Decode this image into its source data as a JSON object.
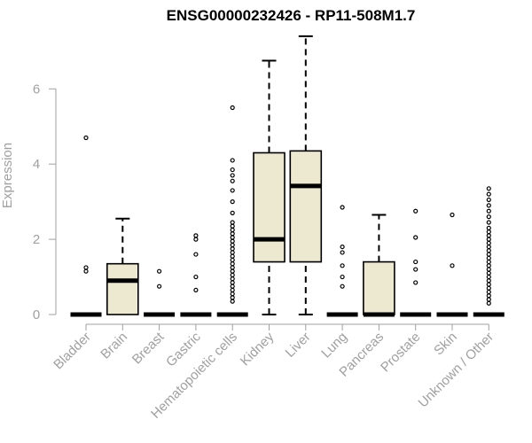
{
  "chart_data": {
    "type": "boxplot",
    "title": "ENSG00000232426 - RP11-508M1.7",
    "xlabel": "",
    "ylabel": "Expression",
    "ylim": [
      0,
      7.4
    ],
    "yticks": [
      0,
      2,
      4,
      6
    ],
    "grid": false,
    "colors": {
      "box_fill": "#ede8d0",
      "axis": "#a0a0a0",
      "ink": "#000000"
    },
    "categories": [
      "Bladder",
      "Brain",
      "Breast",
      "Gastric",
      "Hematopoietic cells",
      "Kidney",
      "Liver",
      "Lung",
      "Pancreas",
      "Prostate",
      "Skin",
      "Unknown / Other"
    ],
    "boxes": [
      {
        "category": "Bladder",
        "whisker_low": 0,
        "q1": 0,
        "median": 0,
        "q3": 0,
        "whisker_high": 0,
        "outliers": [
          1.15,
          1.25,
          4.7
        ]
      },
      {
        "category": "Brain",
        "whisker_low": 0,
        "q1": 0,
        "median": 0.9,
        "q3": 1.35,
        "whisker_high": 2.55,
        "outliers": []
      },
      {
        "category": "Breast",
        "whisker_low": 0,
        "q1": 0,
        "median": 0,
        "q3": 0,
        "whisker_high": 0,
        "outliers": [
          0.75,
          1.15
        ]
      },
      {
        "category": "Gastric",
        "whisker_low": 0,
        "q1": 0,
        "median": 0,
        "q3": 0,
        "whisker_high": 0,
        "outliers": [
          0.65,
          1.0,
          1.6,
          2.0,
          2.1
        ]
      },
      {
        "category": "Hematopoietic cells",
        "whisker_low": 0,
        "q1": 0,
        "median": 0,
        "q3": 0,
        "whisker_high": 0,
        "outliers": [
          0.35,
          0.45,
          0.55,
          0.65,
          0.75,
          0.85,
          0.95,
          1.05,
          1.15,
          1.25,
          1.35,
          1.45,
          1.55,
          1.65,
          1.75,
          1.85,
          1.95,
          2.05,
          2.15,
          2.25,
          2.35,
          2.45,
          2.7,
          3.0,
          3.3,
          3.55,
          3.7,
          3.85,
          4.1,
          5.5
        ]
      },
      {
        "category": "Kidney",
        "whisker_low": 0,
        "q1": 1.4,
        "median": 2.0,
        "q3": 4.3,
        "whisker_high": 6.75,
        "outliers": []
      },
      {
        "category": "Liver",
        "whisker_low": 0,
        "q1": 1.4,
        "median": 3.42,
        "q3": 4.35,
        "whisker_high": 7.4,
        "outliers": []
      },
      {
        "category": "Lung",
        "whisker_low": 0,
        "q1": 0,
        "median": 0,
        "q3": 0,
        "whisker_high": 0,
        "outliers": [
          0.75,
          1.0,
          1.3,
          1.65,
          1.8,
          2.85
        ]
      },
      {
        "category": "Pancreas",
        "whisker_low": 0,
        "q1": 0,
        "median": 0,
        "q3": 1.4,
        "whisker_high": 2.65,
        "outliers": []
      },
      {
        "category": "Prostate",
        "whisker_low": 0,
        "q1": 0,
        "median": 0,
        "q3": 0,
        "whisker_high": 0,
        "outliers": [
          0.85,
          1.2,
          1.4,
          2.05,
          2.75
        ]
      },
      {
        "category": "Skin",
        "whisker_low": 0,
        "q1": 0,
        "median": 0,
        "q3": 0,
        "whisker_high": 0,
        "outliers": [
          1.3,
          2.65
        ]
      },
      {
        "category": "Unknown / Other",
        "whisker_low": 0,
        "q1": 0,
        "median": 0,
        "q3": 0,
        "whisker_high": 0,
        "outliers": [
          0.3,
          0.4,
          0.5,
          0.6,
          0.7,
          0.8,
          0.9,
          1.0,
          1.1,
          1.2,
          1.3,
          1.4,
          1.5,
          1.6,
          1.7,
          1.8,
          1.9,
          2.0,
          2.1,
          2.2,
          2.3,
          2.45,
          2.6,
          2.75,
          2.9,
          3.05,
          3.2,
          3.35
        ]
      }
    ]
  }
}
